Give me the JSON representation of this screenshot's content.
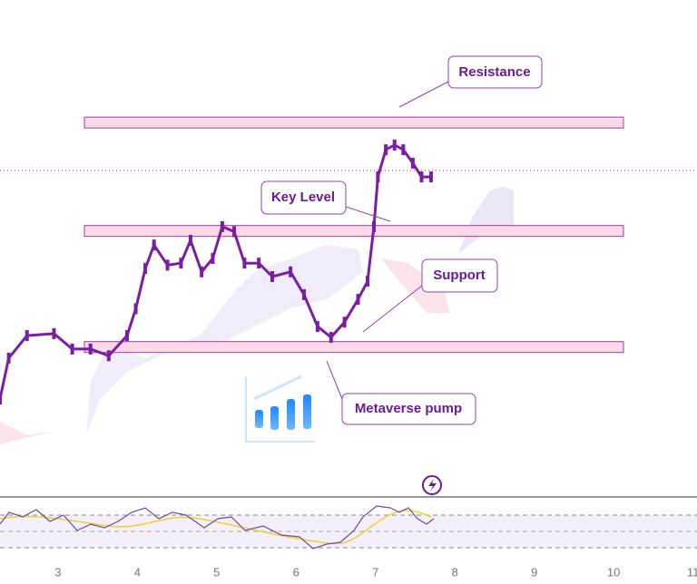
{
  "chart_data": {
    "type": "line",
    "x": [
      2.27,
      2.38,
      2.61,
      2.95,
      3.18,
      3.41,
      3.64,
      3.87,
      3.98,
      4.1,
      4.21,
      4.38,
      4.55,
      4.67,
      4.81,
      4.95,
      5.07,
      5.22,
      5.35,
      5.53,
      5.7,
      5.93,
      6.1,
      6.27,
      6.44,
      6.61,
      6.78,
      6.9,
      6.98,
      7.03,
      7.13,
      7.24,
      7.35,
      7.47,
      7.58,
      7.7
    ],
    "values": [
      8.1,
      20.3,
      27,
      27.6,
      23,
      23,
      21,
      27,
      35,
      47,
      54,
      48,
      48.6,
      55.4,
      46,
      50,
      59.5,
      58,
      48.6,
      48.6,
      44.6,
      46,
      39.2,
      29.7,
      26.5,
      31,
      37.8,
      43.2,
      59.5,
      74.3,
      82.4,
      83.8,
      82.4,
      78.4,
      74.3,
      74.3
    ],
    "color": "#7b1fa2",
    "xlim": [
      2.27,
      11.05
    ],
    "ylim": [
      0,
      100
    ],
    "xticks": [
      3,
      4,
      5,
      6,
      7,
      8,
      9,
      10,
      11
    ],
    "last_price": 76.2,
    "levels": [
      {
        "label": "Resistance",
        "value": 90.5
      },
      {
        "label": "Key Level",
        "value": 58.2
      },
      {
        "label": "Support",
        "value": 23.6
      }
    ],
    "annotation": "Metaverse pump"
  }
}
